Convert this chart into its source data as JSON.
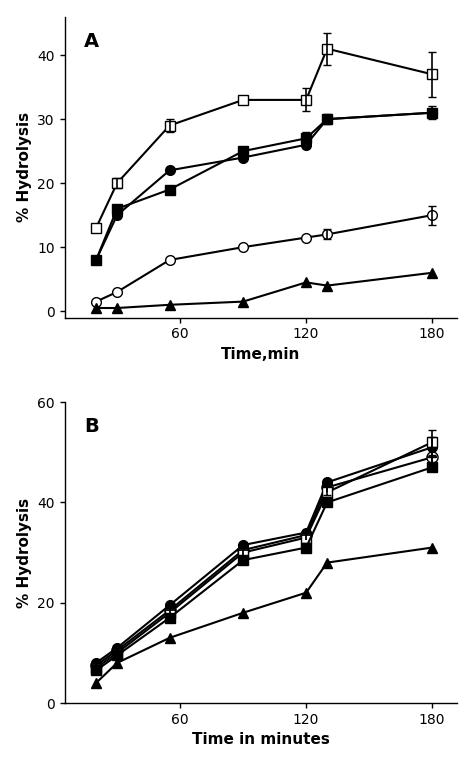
{
  "panel_A": {
    "xlabel": "Time,min",
    "ylabel": "% Hydrolysis",
    "label": "A",
    "xlim": [
      5,
      192
    ],
    "ylim": [
      -1,
      46
    ],
    "xticks": [
      60,
      120,
      180
    ],
    "yticks": [
      0,
      10,
      20,
      30,
      40
    ],
    "series": [
      {
        "x": [
          20,
          30,
          55,
          90,
          120,
          130,
          180
        ],
        "y": [
          13,
          20,
          29,
          33,
          33,
          41,
          37
        ],
        "yerr": [
          0,
          0.8,
          1.0,
          0,
          1.8,
          2.5,
          3.5
        ],
        "marker": "s",
        "fillstyle": "none",
        "color": "black",
        "ms": 7,
        "lw": 1.5
      },
      {
        "x": [
          20,
          30,
          55,
          90,
          120,
          130,
          180
        ],
        "y": [
          8,
          16,
          19,
          25,
          27,
          30,
          31
        ],
        "yerr": [
          0,
          0,
          0,
          0,
          1.0,
          0.8,
          1.0
        ],
        "marker": "s",
        "fillstyle": "full",
        "color": "black",
        "ms": 7,
        "lw": 1.5
      },
      {
        "x": [
          20,
          30,
          55,
          90,
          120,
          130,
          180
        ],
        "y": [
          8,
          15,
          22,
          24,
          26,
          30,
          31
        ],
        "yerr": [
          0,
          0,
          0,
          0,
          0,
          0,
          0
        ],
        "marker": "o",
        "fillstyle": "full",
        "color": "black",
        "ms": 7,
        "lw": 1.5
      },
      {
        "x": [
          20,
          30,
          55,
          90,
          120,
          130,
          180
        ],
        "y": [
          1.5,
          3,
          8,
          10,
          11.5,
          12,
          15
        ],
        "yerr": [
          0,
          0,
          0,
          0,
          0,
          0.8,
          1.5
        ],
        "marker": "o",
        "fillstyle": "none",
        "color": "black",
        "ms": 7,
        "lw": 1.5
      },
      {
        "x": [
          20,
          30,
          55,
          90,
          120,
          130,
          180
        ],
        "y": [
          0.5,
          0.5,
          1.0,
          1.5,
          4.5,
          4.0,
          6.0
        ],
        "yerr": [
          0,
          0,
          0,
          0,
          0,
          0,
          0
        ],
        "marker": "^",
        "fillstyle": "full",
        "color": "black",
        "ms": 7,
        "lw": 1.5
      }
    ]
  },
  "panel_B": {
    "xlabel": "Time in minutes",
    "ylabel": "% Hydrolysis",
    "label": "B",
    "xlim": [
      5,
      192
    ],
    "ylim": [
      0,
      60
    ],
    "xticks": [
      60,
      120,
      180
    ],
    "yticks": [
      0,
      20,
      40,
      60
    ],
    "series": [
      {
        "x": [
          20,
          30,
          55,
          90,
          120,
          130,
          180
        ],
        "y": [
          7.5,
          10.5,
          18.5,
          30.5,
          33.5,
          43,
          49
        ],
        "yerr": [
          0,
          0,
          0,
          0,
          0,
          1.5,
          2.0
        ],
        "marker": "o",
        "fillstyle": "none",
        "crosshair": true,
        "color": "black",
        "ms": 8,
        "lw": 1.5
      },
      {
        "x": [
          20,
          30,
          55,
          90,
          120,
          130,
          180
        ],
        "y": [
          8,
          11,
          19.5,
          31.5,
          34,
          44,
          51
        ],
        "yerr": [
          0,
          0,
          0,
          0,
          0,
          0,
          2.0
        ],
        "marker": "o",
        "fillstyle": "full",
        "color": "black",
        "ms": 7,
        "lw": 1.5
      },
      {
        "x": [
          20,
          30,
          55,
          90,
          120,
          130,
          180
        ],
        "y": [
          7,
          10,
          18,
          30,
          33,
          42,
          52
        ],
        "yerr": [
          0,
          0,
          0,
          0,
          0,
          0,
          2.5
        ],
        "marker": "s",
        "fillstyle": "none",
        "color": "black",
        "ms": 7,
        "lw": 1.5
      },
      {
        "x": [
          20,
          30,
          55,
          90,
          120,
          130,
          180
        ],
        "y": [
          6.5,
          9.5,
          17,
          28.5,
          31,
          40,
          47
        ],
        "yerr": [
          0,
          0,
          0,
          0,
          0,
          0,
          0
        ],
        "marker": "s",
        "fillstyle": "full",
        "color": "black",
        "ms": 7,
        "lw": 1.5
      },
      {
        "x": [
          20,
          30,
          55,
          90,
          120,
          130,
          180
        ],
        "y": [
          4,
          8,
          13,
          18,
          22,
          28,
          31
        ],
        "yerr": [
          0,
          0,
          0,
          0,
          0,
          0,
          0
        ],
        "marker": "^",
        "fillstyle": "full",
        "color": "black",
        "ms": 7,
        "lw": 1.5
      }
    ]
  }
}
